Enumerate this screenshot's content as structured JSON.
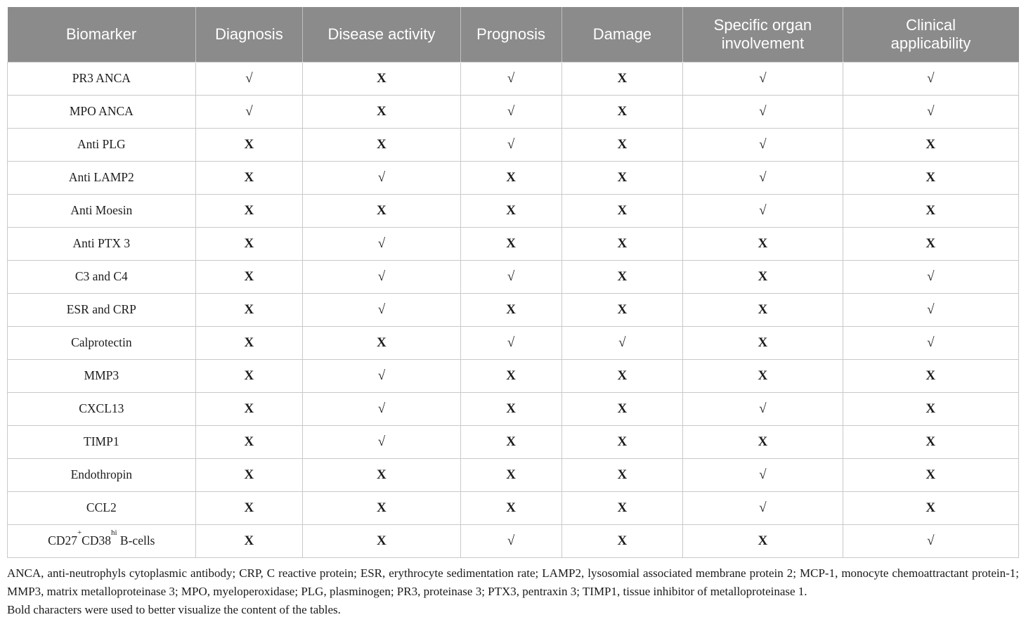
{
  "colors": {
    "header_bg": "#8b8b8b",
    "header_text": "#ffffff",
    "body_text": "#1c1c1c",
    "border": "#c9c9c9"
  },
  "table": {
    "columns": [
      {
        "label": "Biomarker"
      },
      {
        "label": "Diagnosis"
      },
      {
        "label": "Disease activity"
      },
      {
        "label": "Prognosis"
      },
      {
        "label": "Damage"
      },
      {
        "label": "Specific organ\ninvolvement"
      },
      {
        "label": "Clinical\napplicability"
      }
    ],
    "marks_legend": {
      "yes": "√",
      "no": "X"
    },
    "rows": [
      {
        "biomarker": "PR3 ANCA",
        "marks": [
          "√",
          "X",
          "√",
          "X",
          "√",
          "√"
        ]
      },
      {
        "biomarker": "MPO ANCA",
        "marks": [
          "√",
          "X",
          "√",
          "X",
          "√",
          "√"
        ]
      },
      {
        "biomarker": "Anti PLG",
        "marks": [
          "X",
          "X",
          "√",
          "X",
          "√",
          "X"
        ]
      },
      {
        "biomarker": "Anti LAMP2",
        "marks": [
          "X",
          "√",
          "X",
          "X",
          "√",
          "X"
        ]
      },
      {
        "biomarker": "Anti Moesin",
        "marks": [
          "X",
          "X",
          "X",
          "X",
          "√",
          "X"
        ]
      },
      {
        "biomarker": "Anti PTX 3",
        "marks": [
          "X",
          "√",
          "X",
          "X",
          "X",
          "X"
        ]
      },
      {
        "biomarker": "C3 and C4",
        "marks": [
          "X",
          "√",
          "√",
          "X",
          "X",
          "√"
        ]
      },
      {
        "biomarker": "ESR and CRP",
        "marks": [
          "X",
          "√",
          "X",
          "X",
          "X",
          "√"
        ]
      },
      {
        "biomarker": "Calprotectin",
        "marks": [
          "X",
          "X",
          "√",
          "√",
          "X",
          "√"
        ]
      },
      {
        "biomarker": "MMP3",
        "marks": [
          "X",
          "√",
          "X",
          "X",
          "X",
          "X"
        ]
      },
      {
        "biomarker": "CXCL13",
        "marks": [
          "X",
          "√",
          "X",
          "X",
          "√",
          "X"
        ]
      },
      {
        "biomarker": "TIMP1",
        "marks": [
          "X",
          "√",
          "X",
          "X",
          "X",
          "X"
        ]
      },
      {
        "biomarker": "Endothropin",
        "marks": [
          "X",
          "X",
          "X",
          "X",
          "√",
          "X"
        ]
      },
      {
        "biomarker": "CCL2",
        "marks": [
          "X",
          "X",
          "X",
          "X",
          "√",
          "X"
        ]
      },
      {
        "biomarker_parts": [
          {
            "text": "CD27"
          },
          {
            "text": "+",
            "sup": true
          },
          {
            "text": "CD38"
          },
          {
            "text": "hi",
            "sup": true
          },
          {
            "text": " B-cells"
          }
        ],
        "marks": [
          "X",
          "X",
          "√",
          "X",
          "X",
          "√"
        ]
      }
    ]
  },
  "footnote": {
    "abbreviations": "ANCA, anti-neutrophyls cytoplasmic antibody; CRP, C reactive protein; ESR, erythrocyte sedimentation rate; LAMP2, lysosomial associated membrane protein 2; MCP-1, monocyte chemoattractant protein-1; MMP3, matrix metalloproteinase 3; MPO, myeloperoxidase; PLG, plasminogen; PR3, proteinase 3; PTX3, pentraxin 3; TIMP1, tissue inhibitor of metalloproteinase 1.",
    "note": "Bold characters were used to better visualize the content of the tables."
  }
}
